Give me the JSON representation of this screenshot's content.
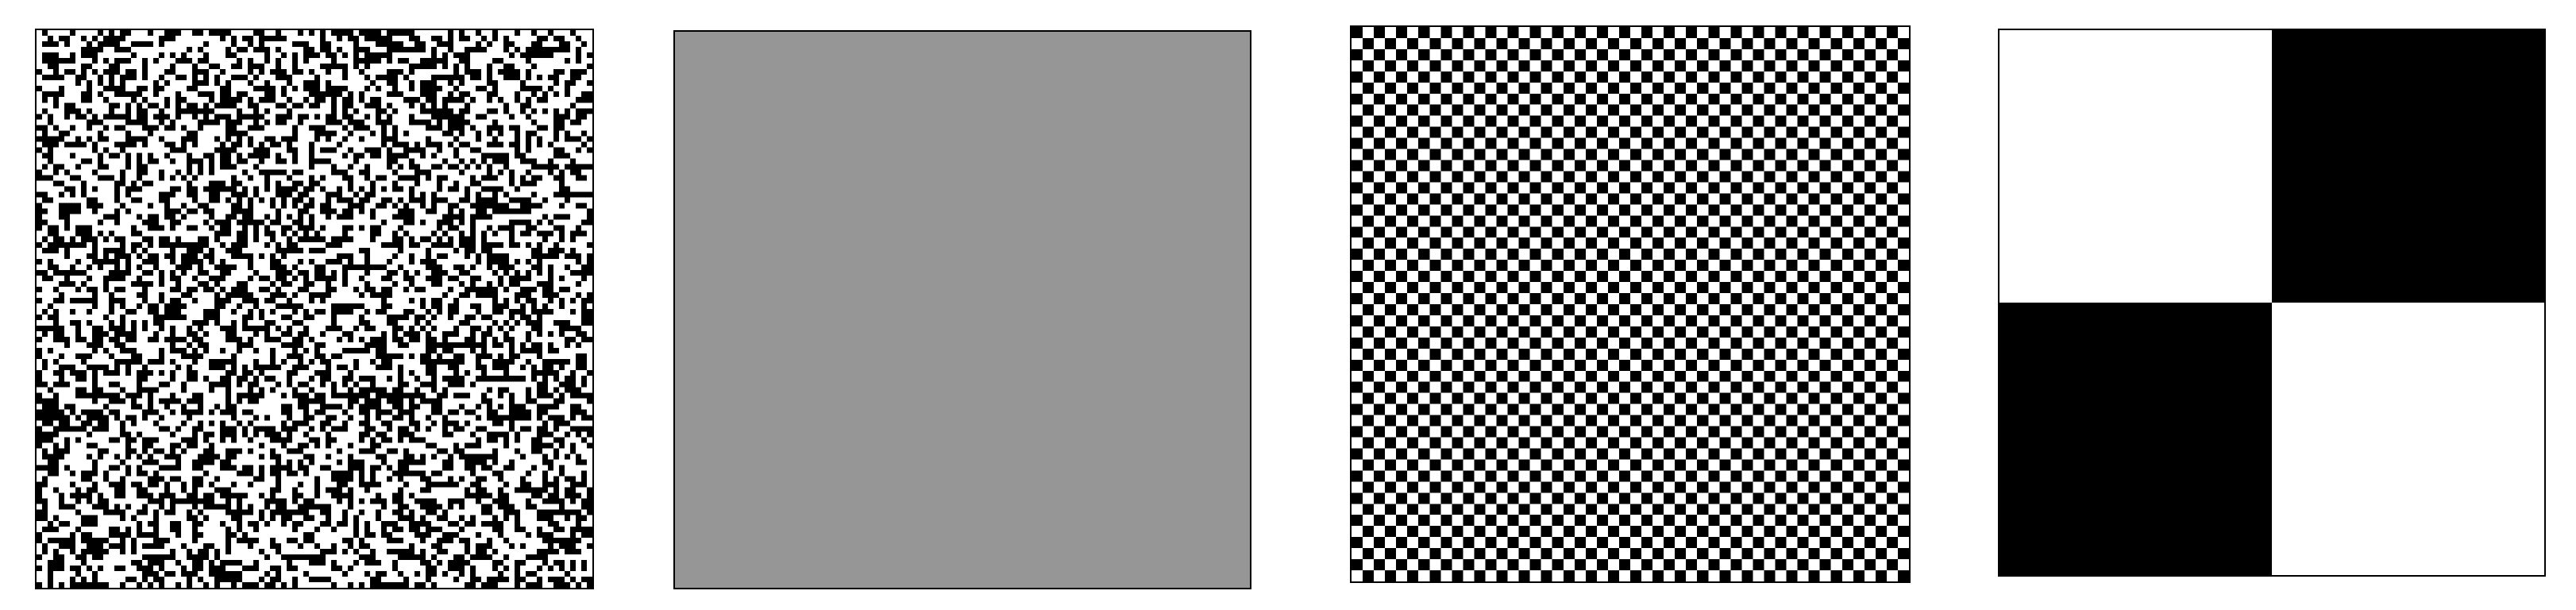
{
  "colors": {
    "black": "#000000",
    "white": "#ffffff",
    "gray": "#969696"
  },
  "panels": [
    {
      "pattern": "random-binary-noise",
      "grid": 100
    },
    {
      "pattern": "uniform-gray",
      "fill_level": 0.59
    },
    {
      "pattern": "checkerboard",
      "grid": 50
    },
    {
      "pattern": "quadrant-checkerboard",
      "grid": 2
    }
  ]
}
